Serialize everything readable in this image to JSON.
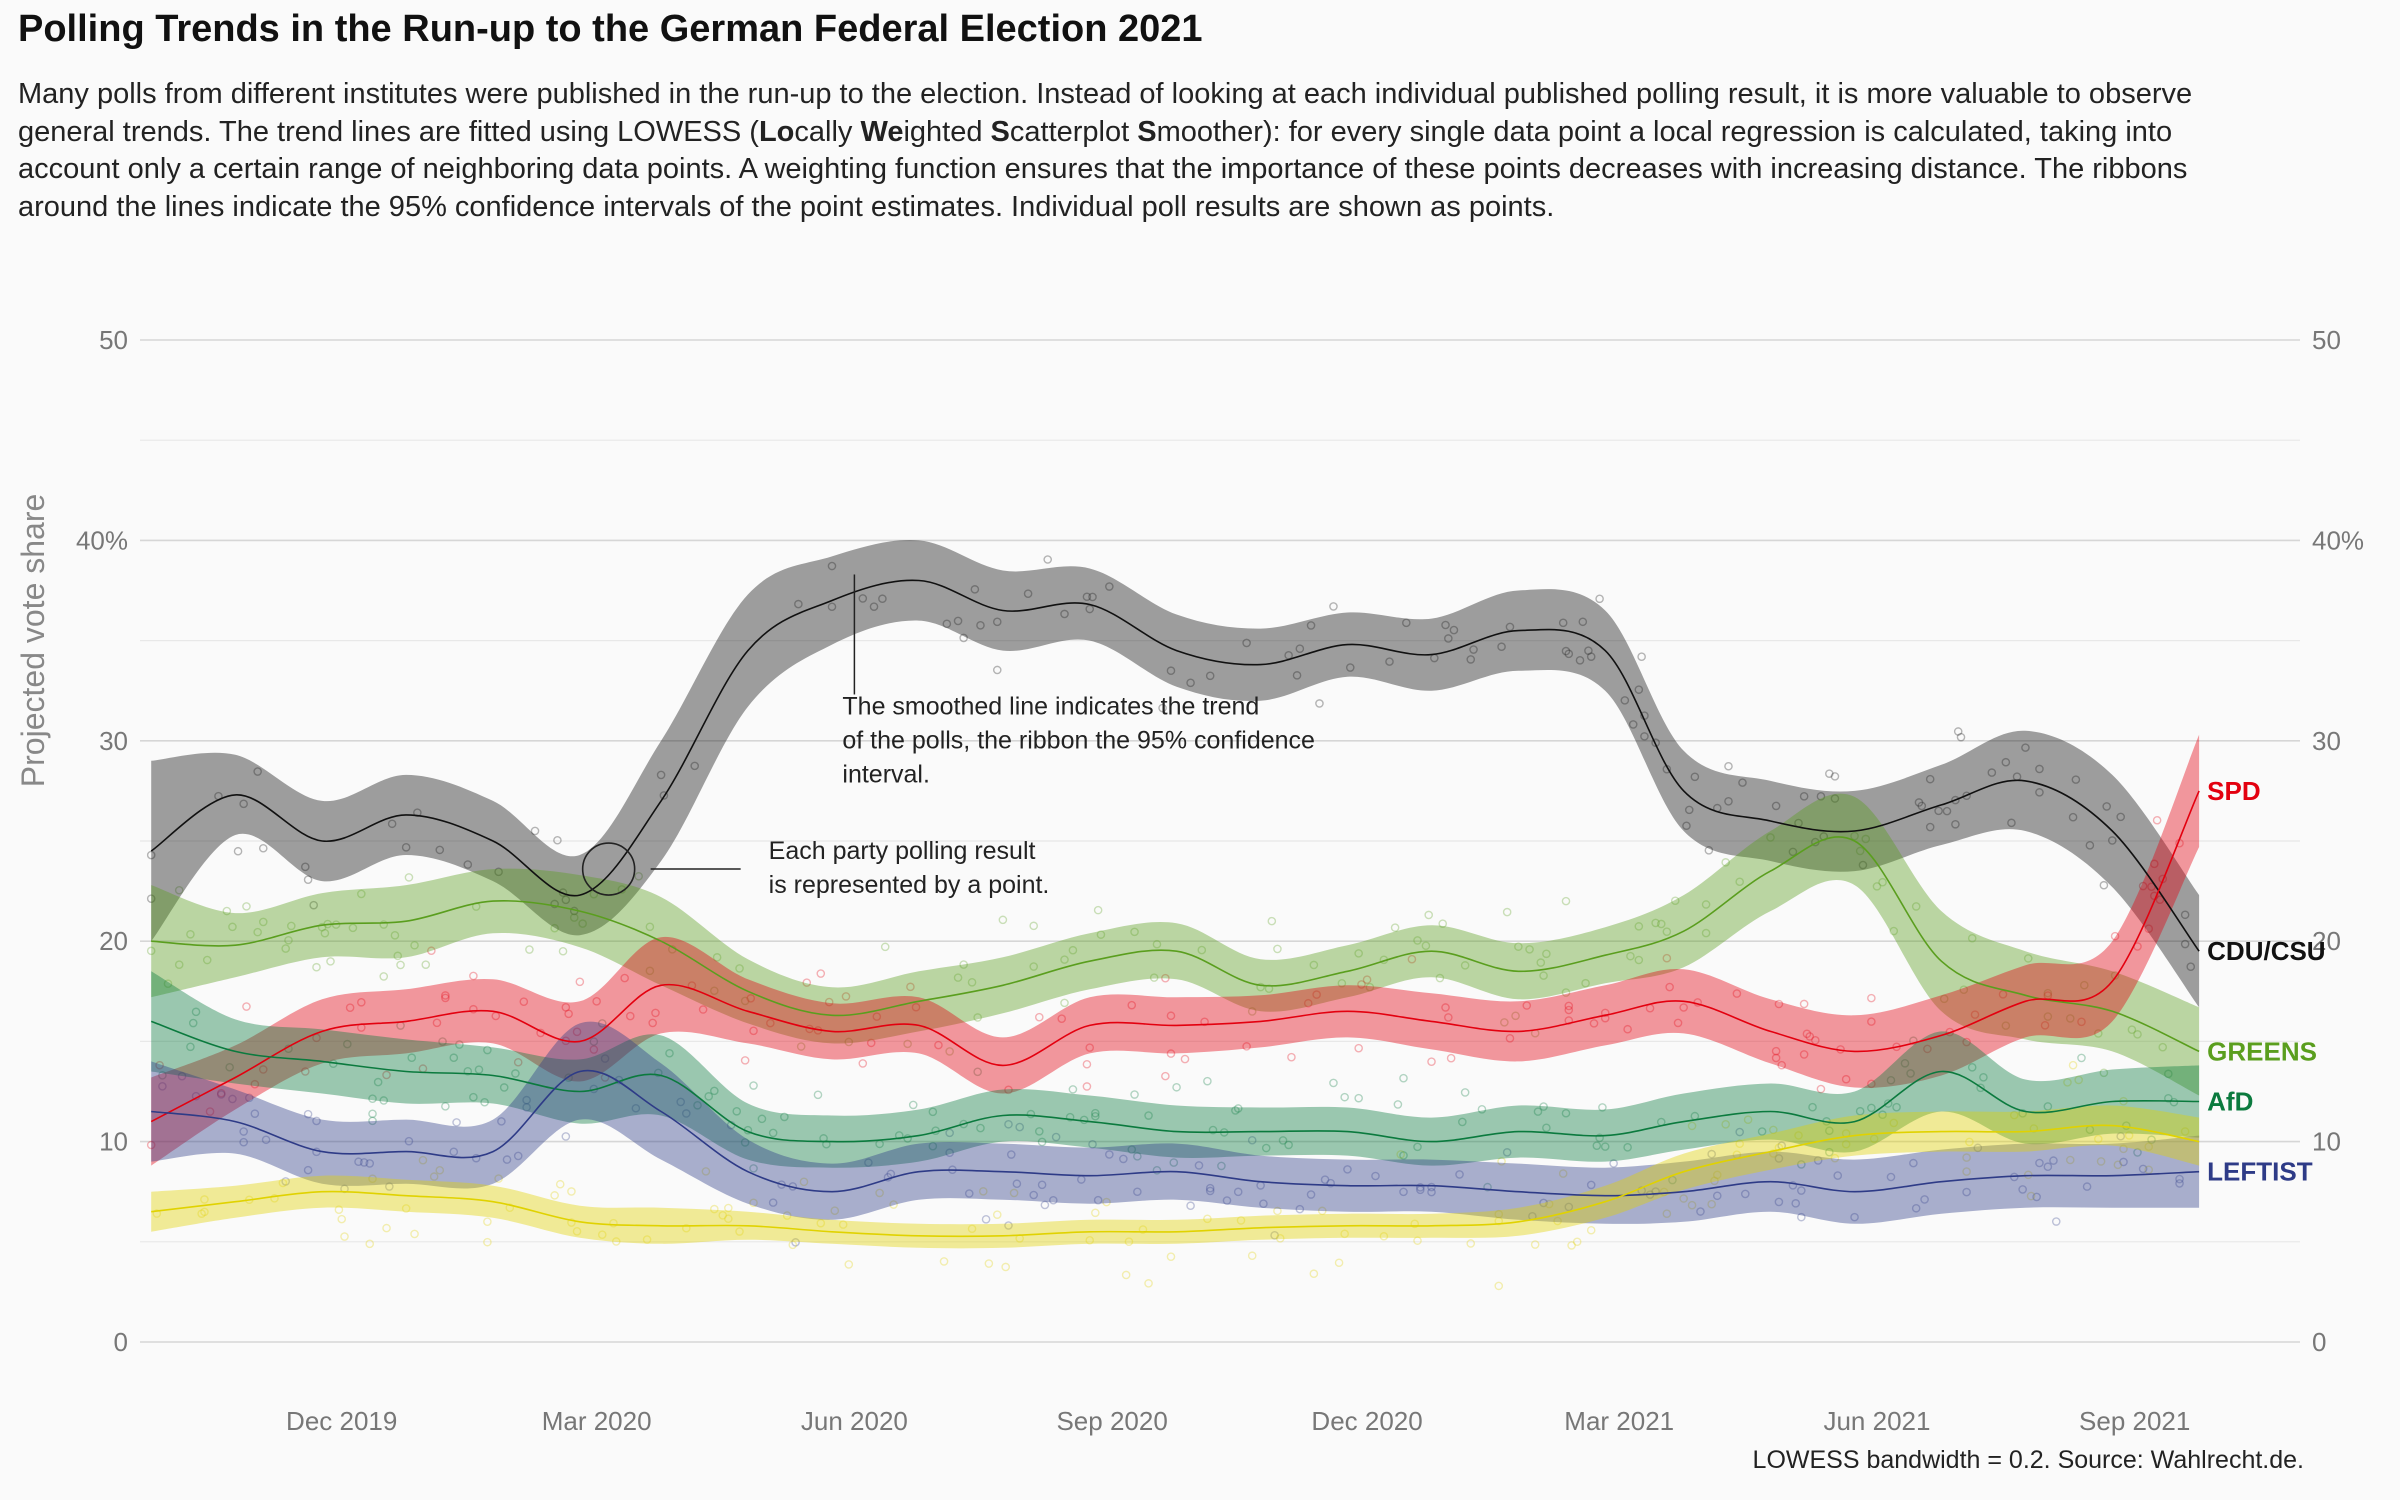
{
  "title": "Polling Trends in the Run-up to the German Federal Election 2021",
  "subtitle_html": "Many polls from different institutes were published in the run-up to the election. Instead of looking at each individual published polling result, it is more valuable to observe general trends. The trend lines are fitted using LOWESS (<b>Lo</b>cally <b>We</b>ighted <b>S</b>catterplot <b>S</b>moother): for every single data point a local regression is calculated, taking into account only a certain range of neighboring data points. A weighting function ensures that the importance of these points decreases with increasing distance. The ribbons around the lines indicate the 95% confidence intervals of the point estimates. Individual poll results are shown as points.",
  "caption": "LOWESS bandwidth = 0.2. Source: Wahlrecht.de.",
  "chart_data": {
    "type": "line",
    "ylabel": "Projected vote share",
    "ylim": [
      0,
      50
    ],
    "xlim": [
      "2019-09-20",
      "2021-10-30"
    ],
    "y_ticks": [
      {
        "value": 0,
        "label": "0"
      },
      {
        "value": 10,
        "label": "10"
      },
      {
        "value": 20,
        "label": "20"
      },
      {
        "value": 30,
        "label": "30"
      },
      {
        "value": 40,
        "label": "40%"
      },
      {
        "value": 50,
        "label": "50"
      }
    ],
    "x_ticks": [
      {
        "date": "2019-12-01",
        "label": "Dec 2019"
      },
      {
        "date": "2020-03-01",
        "label": "Mar 2020"
      },
      {
        "date": "2020-06-01",
        "label": "Jun 2020"
      },
      {
        "date": "2020-09-01",
        "label": "Sep 2020"
      },
      {
        "date": "2020-12-01",
        "label": "Dec 2020"
      },
      {
        "date": "2021-03-01",
        "label": "Mar 2021"
      },
      {
        "date": "2021-06-01",
        "label": "Jun 2021"
      },
      {
        "date": "2021-09-01",
        "label": "Sep 2021"
      }
    ],
    "x": [
      "2019-09-24",
      "2019-10-24",
      "2019-11-24",
      "2019-12-24",
      "2020-01-24",
      "2020-02-24",
      "2020-03-24",
      "2020-04-24",
      "2020-05-24",
      "2020-06-24",
      "2020-07-24",
      "2020-08-24",
      "2020-09-24",
      "2020-10-24",
      "2020-11-24",
      "2020-12-24",
      "2021-01-24",
      "2021-02-24",
      "2021-03-24",
      "2021-04-24",
      "2021-05-24",
      "2021-06-24",
      "2021-07-24",
      "2021-08-24",
      "2021-09-24"
    ],
    "series": [
      {
        "name": "CDU/CSU",
        "color": "#111111",
        "values": [
          24.5,
          27.3,
          25.0,
          26.3,
          25.0,
          22.3,
          27.0,
          34.5,
          37.0,
          38.0,
          36.5,
          36.8,
          34.5,
          33.8,
          34.8,
          34.3,
          35.5,
          34.5,
          27.5,
          26.0,
          25.5,
          26.8,
          28.0,
          25.5,
          19.5
        ],
        "ci": [
          4.5,
          2.0,
          2.0,
          2.0,
          2.0,
          2.0,
          3.0,
          2.8,
          2.2,
          2.0,
          2.0,
          1.8,
          1.8,
          1.8,
          1.6,
          1.8,
          2.0,
          2.0,
          2.0,
          2.0,
          2.0,
          2.0,
          2.5,
          2.8,
          2.8
        ]
      },
      {
        "name": "GREENS",
        "color": "#5a9e1e",
        "values": [
          20.0,
          19.8,
          20.8,
          21.0,
          22.0,
          21.5,
          20.0,
          17.5,
          16.3,
          17.0,
          17.8,
          19.0,
          19.5,
          17.8,
          18.5,
          19.5,
          18.5,
          19.3,
          20.5,
          23.5,
          25.0,
          19.0,
          17.3,
          16.5,
          14.5
        ],
        "ci": [
          2.8,
          1.6,
          1.6,
          1.8,
          1.6,
          1.8,
          2.2,
          1.6,
          1.4,
          1.5,
          1.4,
          1.4,
          1.4,
          1.3,
          1.3,
          1.3,
          1.4,
          1.4,
          1.8,
          2.0,
          2.2,
          2.5,
          2.2,
          2.0,
          2.2
        ]
      },
      {
        "name": "SPD",
        "color": "#e3000f",
        "values": [
          11.0,
          13.2,
          15.5,
          16.0,
          16.5,
          15.0,
          17.8,
          16.5,
          15.5,
          15.8,
          13.8,
          15.8,
          15.8,
          16.0,
          16.5,
          16.0,
          15.5,
          16.3,
          17.0,
          15.5,
          14.5,
          15.3,
          17.0,
          18.0,
          27.5
        ],
        "ci": [
          2.2,
          1.6,
          1.6,
          1.6,
          1.6,
          2.0,
          2.4,
          1.6,
          1.4,
          1.4,
          1.4,
          1.4,
          1.4,
          1.3,
          1.3,
          1.4,
          1.5,
          1.5,
          1.6,
          1.6,
          1.8,
          2.0,
          1.8,
          2.0,
          2.8
        ]
      },
      {
        "name": "AfD",
        "color": "#0b7a3e",
        "values": [
          16.0,
          14.5,
          14.0,
          13.5,
          13.3,
          12.5,
          13.3,
          10.5,
          10.0,
          10.3,
          11.3,
          11.0,
          10.5,
          10.5,
          10.5,
          10.0,
          10.5,
          10.3,
          11.0,
          11.5,
          11.0,
          13.5,
          11.5,
          12.0,
          12.0
        ],
        "ci": [
          2.5,
          1.6,
          1.6,
          1.6,
          1.4,
          1.6,
          2.0,
          1.4,
          1.3,
          1.3,
          1.3,
          1.3,
          1.3,
          1.2,
          1.2,
          1.2,
          1.3,
          1.3,
          1.4,
          1.4,
          1.5,
          2.0,
          1.6,
          1.6,
          1.8
        ]
      },
      {
        "name": "LEFTIST",
        "color": "#2e3b87",
        "values": [
          11.5,
          11.0,
          9.5,
          9.5,
          9.5,
          13.5,
          11.5,
          8.5,
          7.5,
          8.5,
          8.5,
          8.3,
          8.5,
          8.0,
          7.8,
          7.8,
          7.5,
          7.3,
          7.5,
          8.0,
          7.5,
          8.0,
          8.3,
          8.3,
          8.5
        ],
        "ci": [
          2.5,
          1.6,
          1.6,
          1.6,
          1.6,
          2.4,
          2.4,
          1.6,
          1.4,
          1.4,
          1.4,
          1.4,
          1.4,
          1.3,
          1.3,
          1.3,
          1.4,
          1.4,
          1.5,
          1.5,
          1.6,
          1.6,
          1.6,
          1.6,
          1.8
        ]
      },
      {
        "name": "",
        "color": "#e0d200",
        "values": [
          6.5,
          7.0,
          7.5,
          7.3,
          7.0,
          6.0,
          5.8,
          5.8,
          5.5,
          5.3,
          5.3,
          5.5,
          5.5,
          5.7,
          5.8,
          5.8,
          6.0,
          7.0,
          8.5,
          9.5,
          10.3,
          10.5,
          10.5,
          10.8,
          10.0
        ],
        "ci": [
          1.0,
          0.8,
          0.8,
          0.8,
          0.8,
          0.8,
          0.9,
          0.7,
          0.6,
          0.6,
          0.6,
          0.6,
          0.6,
          0.6,
          0.6,
          0.6,
          0.7,
          0.8,
          0.9,
          0.9,
          1.0,
          1.0,
          1.0,
          1.0,
          1.2
        ]
      }
    ],
    "annotations": [
      {
        "text_lines": [
          "The smoothed line indicates the trend",
          "of the polls, the ribbon the 95% confidence",
          "interval."
        ],
        "x": "2020-06-01",
        "y": 38.3
      },
      {
        "text_lines": [
          "Each party polling result",
          "is represented by a point."
        ],
        "x": "2020-03-01",
        "y": 23.8
      }
    ],
    "points_note": "individual poll results shown as faint points around each trend line",
    "grid": true,
    "legend": "direct labels at right end of lines"
  }
}
